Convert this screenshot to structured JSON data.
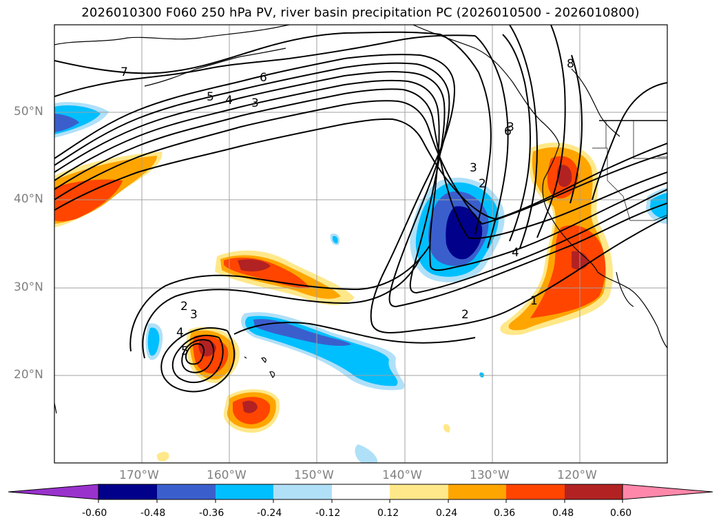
{
  "title": "2026010300 F060 250 hPa PV, river basin precipitation PC (2026010500 - 2026010800)",
  "lat_labels": [
    "50°N",
    "40°N",
    "30°N",
    "20°N"
  ],
  "lon_labels": [
    "170°W",
    "160°W",
    "150°W",
    "140°W",
    "130°W",
    "120°W"
  ],
  "pv_contour_labels": [
    "7",
    "6",
    "5",
    "4",
    "3",
    "2",
    "3",
    "4",
    "5",
    "3",
    "2",
    "1",
    "2",
    "3",
    "4",
    "6",
    "8"
  ],
  "colorbar": {
    "tick_labels": [
      "-0.60",
      "-0.48",
      "-0.36",
      "-0.24",
      "-0.12",
      "0.12",
      "0.24",
      "0.36",
      "0.48",
      "0.60"
    ],
    "colors": [
      "#9932cc",
      "#00008b",
      "#3a5fcd",
      "#00bfff",
      "#b0e0f8",
      "#ffffff",
      "#ffe88a",
      "#ffa500",
      "#ff4500",
      "#b22222",
      "#ff88aa"
    ]
  },
  "chart_data": {
    "type": "map",
    "region": {
      "lon_range": [
        -180,
        -110
      ],
      "lat_range": [
        10,
        60
      ]
    },
    "contour_variable": "250 hPa PV",
    "fill_variable": "river basin precipitation PC",
    "fill_levels": [
      -0.6,
      -0.48,
      -0.36,
      -0.24,
      -0.12,
      0.12,
      0.24,
      0.36,
      0.48,
      0.6
    ],
    "contour_levels": [
      1,
      2,
      3,
      4,
      5,
      6,
      7,
      8
    ],
    "grid": true
  }
}
